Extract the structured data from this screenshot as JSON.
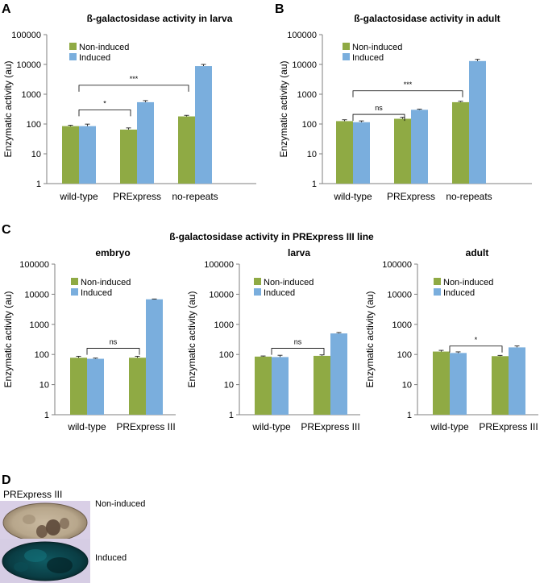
{
  "figure_title_c": "ß-galactosidase activity in PRExpress III line",
  "colors": {
    "non_induced": "#8faa44",
    "induced": "#7aaedd",
    "axis": "#7f7f7f",
    "bracket": "#000000"
  },
  "chart_data": [
    {
      "panel": "A",
      "type": "bar",
      "title": "ß-galactosidase activity in larva",
      "ylabel": "Enzymatic activity (au)",
      "yscale": "log",
      "ylim": [
        1,
        100000
      ],
      "yticks": [
        "1",
        "10",
        "100",
        "1000",
        "10000",
        "100000"
      ],
      "categories": [
        "wild-type",
        "PRExpress",
        "no-repeats"
      ],
      "series": [
        {
          "name": "Non-induced",
          "values": [
            85,
            65,
            180
          ],
          "errors": [
            6,
            9,
            15
          ]
        },
        {
          "name": "Induced",
          "values": [
            85,
            540,
            8800
          ],
          "errors": [
            14,
            70,
            1200
          ]
        }
      ],
      "annotations": [
        {
          "from": 0,
          "to": 1,
          "label": "*",
          "level": 300
        },
        {
          "from": 0,
          "to": 2,
          "label": "***",
          "level": 2000
        }
      ]
    },
    {
      "panel": "B",
      "type": "bar",
      "title": "ß-galactosidase activity in adult",
      "ylabel": "Enzymatic activity (au)",
      "yscale": "log",
      "ylim": [
        1,
        100000
      ],
      "yticks": [
        "1",
        "10",
        "100",
        "1000",
        "10000",
        "100000"
      ],
      "categories": [
        "wild-type",
        "PRExpress",
        "no-repeats"
      ],
      "series": [
        {
          "name": "Non-induced",
          "values": [
            125,
            150,
            540
          ],
          "errors": [
            14,
            18,
            40
          ]
        },
        {
          "name": "Induced",
          "values": [
            115,
            300,
            13000
          ],
          "errors": [
            12,
            15,
            1800
          ]
        }
      ],
      "annotations": [
        {
          "from": 0,
          "to": 1,
          "label": "ns",
          "level": 210
        },
        {
          "from": 0,
          "to": 2,
          "label": "***",
          "level": 1300
        }
      ]
    },
    {
      "panel": "C1",
      "type": "bar",
      "title": "embryo",
      "ylabel": "Enzymatic activity (au)",
      "yscale": "log",
      "ylim": [
        1,
        100000
      ],
      "yticks": [
        "1",
        "10",
        "100",
        "1000",
        "10000",
        "100000"
      ],
      "categories": [
        "wild-type",
        "PRExpress III"
      ],
      "series": [
        {
          "name": "Non-induced",
          "values": [
            78,
            78
          ],
          "errors": [
            9,
            9
          ]
        },
        {
          "name": "Induced",
          "values": [
            72,
            6800
          ],
          "errors": [
            4,
            150
          ]
        }
      ],
      "annotations": [
        {
          "from": 0,
          "to": 1,
          "label": "ns",
          "level": 160
        }
      ]
    },
    {
      "panel": "C2",
      "type": "bar",
      "title": "larva",
      "ylabel": "Enzymatic activity (au)",
      "yscale": "log",
      "ylim": [
        1,
        100000
      ],
      "yticks": [
        "1",
        "10",
        "100",
        "1000",
        "10000",
        "100000"
      ],
      "categories": [
        "wild-type",
        "PRExpress III"
      ],
      "series": [
        {
          "name": "Non-induced",
          "values": [
            85,
            90
          ],
          "errors": [
            4,
            7
          ]
        },
        {
          "name": "Induced",
          "values": [
            82,
            500
          ],
          "errors": [
            12,
            35
          ]
        }
      ],
      "annotations": [
        {
          "from": 0,
          "to": 1,
          "label": "ns",
          "level": 160
        }
      ]
    },
    {
      "panel": "C3",
      "type": "bar",
      "title": "adult",
      "ylabel": "Enzymatic activity (au)",
      "yscale": "log",
      "ylim": [
        1,
        100000
      ],
      "yticks": [
        "1",
        "10",
        "100",
        "1000",
        "10000",
        "100000"
      ],
      "categories": [
        "wild-type",
        "PRExpress III"
      ],
      "series": [
        {
          "name": "Non-induced",
          "values": [
            125,
            88
          ],
          "errors": [
            12,
            5
          ]
        },
        {
          "name": "Induced",
          "values": [
            112,
            172
          ],
          "errors": [
            10,
            20
          ]
        }
      ],
      "annotations": [
        {
          "from": 0,
          "to": 1,
          "label": "*",
          "level": 190
        }
      ]
    }
  ],
  "panel_d": {
    "panel": "D",
    "title": "PRExpress III",
    "images": [
      {
        "label": "Non-induced"
      },
      {
        "label": "Induced"
      }
    ]
  }
}
